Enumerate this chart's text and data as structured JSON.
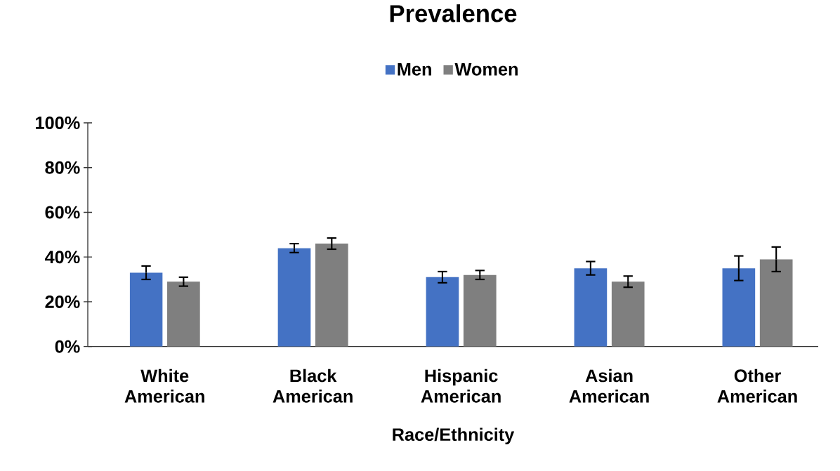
{
  "chart_data": {
    "type": "bar",
    "title": "Prevalence",
    "xlabel": "Race/Ethnicity",
    "categories": [
      "White American",
      "Black American",
      "Hispanic American",
      "Asian American",
      "Other American"
    ],
    "series": [
      {
        "name": "Men",
        "color": "#4472c4",
        "values": [
          33,
          44,
          31,
          35,
          35
        ],
        "errors": [
          3,
          2,
          2.5,
          3,
          5.5
        ]
      },
      {
        "name": "Women",
        "color": "#7f7f7f",
        "values": [
          29,
          46,
          32,
          29,
          39
        ],
        "errors": [
          2,
          2.5,
          2,
          2.5,
          5.5
        ]
      }
    ],
    "ylim": [
      0,
      100
    ],
    "yticks": [
      {
        "value": 0,
        "label": "0%"
      },
      {
        "value": 20,
        "label": "20%"
      },
      {
        "value": 40,
        "label": "40%"
      },
      {
        "value": 60,
        "label": "60%"
      },
      {
        "value": 80,
        "label": "80%"
      },
      {
        "value": 100,
        "label": "100%"
      }
    ],
    "legend": "top"
  }
}
